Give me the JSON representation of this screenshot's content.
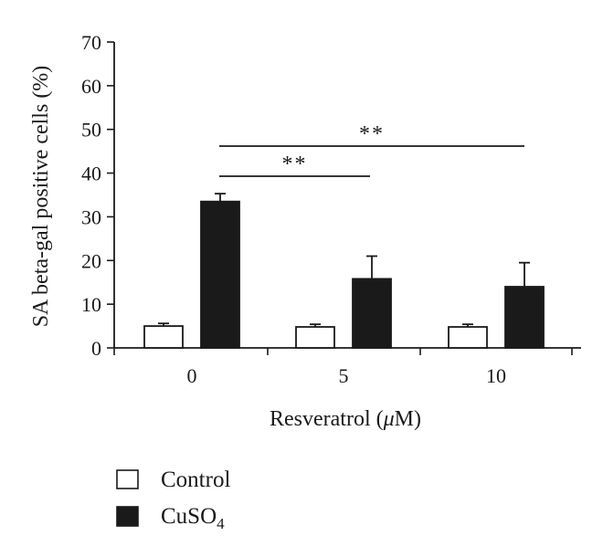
{
  "chart_data": {
    "type": "bar",
    "categories": [
      "0",
      "5",
      "10"
    ],
    "series": [
      {
        "name": "Control",
        "values": [
          5.0,
          4.8,
          4.8
        ],
        "errors": [
          0.6,
          0.6,
          0.6
        ],
        "color": "#ffffff"
      },
      {
        "name": "CuSO4",
        "values": [
          33.5,
          15.8,
          14.0
        ],
        "errors": [
          1.8,
          5.2,
          5.5
        ],
        "color": "#1a1a1a"
      }
    ],
    "xlabel": "Resveratrol (μM)",
    "ylabel": "SA beta-gal positive cells (%)",
    "ylim": [
      0,
      70
    ],
    "yticks": [
      0,
      10,
      20,
      30,
      40,
      50,
      60,
      70
    ],
    "legend_position": "bottom-left",
    "grid": false,
    "significance": [
      {
        "from": "0",
        "to": "5",
        "label": "**"
      },
      {
        "from": "0",
        "to": "10",
        "label": "**"
      }
    ]
  },
  "legend": {
    "control": "Control",
    "cuso4_base": "CuSO",
    "cuso4_sub": "4"
  },
  "axis": {
    "xlabel_prefix": "Resveratrol (",
    "xlabel_mu": "μ",
    "xlabel_suffix": "M)"
  }
}
